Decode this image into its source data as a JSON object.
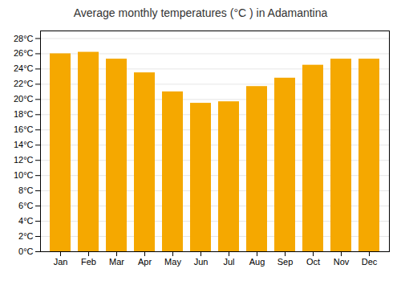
{
  "chart_data": {
    "type": "bar",
    "title": "Average monthly temperatures (°C ) in Adamantina",
    "categories": [
      "Jan",
      "Feb",
      "Mar",
      "Apr",
      "May",
      "Jun",
      "Jul",
      "Aug",
      "Sep",
      "Oct",
      "Nov",
      "Dec"
    ],
    "values": [
      26.0,
      26.2,
      25.3,
      23.5,
      21.0,
      19.5,
      19.7,
      21.7,
      22.8,
      24.5,
      25.3,
      25.3
    ],
    "color": "#F5A800",
    "ylim": [
      0,
      29
    ],
    "yticks": [
      {
        "value": 0,
        "label": "0°C"
      },
      {
        "value": 2,
        "label": "2°C"
      },
      {
        "value": 4,
        "label": "4°C"
      },
      {
        "value": 6,
        "label": "6°C"
      },
      {
        "value": 8,
        "label": "8°C"
      },
      {
        "value": 10,
        "label": "10°C"
      },
      {
        "value": 12,
        "label": "12°C"
      },
      {
        "value": 14,
        "label": "14°C"
      },
      {
        "value": 16,
        "label": "16°C"
      },
      {
        "value": 18,
        "label": "18°C"
      },
      {
        "value": 20,
        "label": "20°C"
      },
      {
        "value": 22,
        "label": "22°C"
      },
      {
        "value": 24,
        "label": "24°C"
      },
      {
        "value": 26,
        "label": "26°C"
      },
      {
        "value": 28,
        "label": "28°C"
      }
    ],
    "grid": true
  }
}
